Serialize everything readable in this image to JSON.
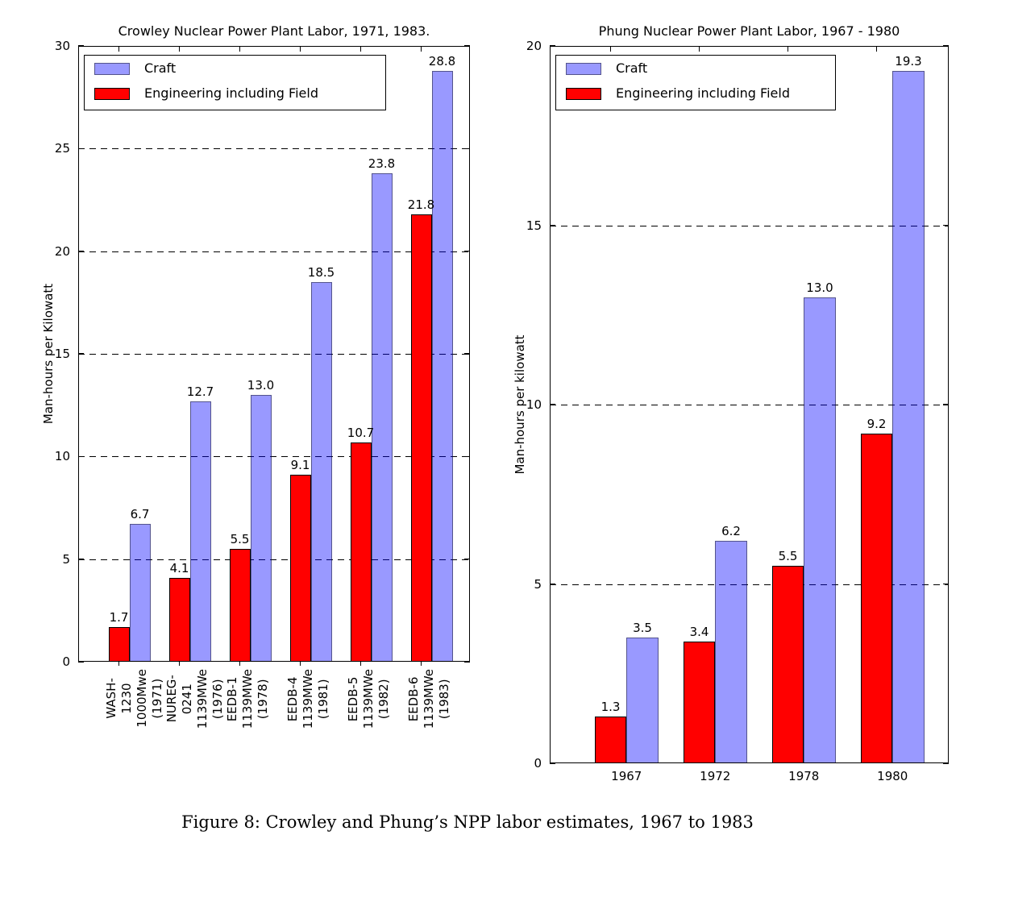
{
  "figure": {
    "caption": "Figure 8: Crowley and Phung’s NPP labor estimates, 1967 to 1983"
  },
  "chart_data": [
    {
      "type": "bar",
      "title": "Crowley Nuclear Power Plant Labor, 1971, 1983.",
      "ylabel": "Man-hours per Kilowatt",
      "xlabel": "",
      "ylim": [
        0,
        30
      ],
      "yticks": [
        0,
        5,
        10,
        15,
        20,
        25,
        30
      ],
      "gridlines": [
        5,
        10,
        15,
        20,
        25
      ],
      "grid_style": "dashed-horizontal",
      "legend_position": "upper-left",
      "categories": [
        [
          "WASH-1230",
          "1000Mwe (1971)"
        ],
        [
          "NUREG-0241",
          "1139MWe (1976)"
        ],
        [
          "EEDB-1",
          "1139MWe (1978)"
        ],
        [
          "EEDB-4",
          "1139MWe (1981)"
        ],
        [
          "EEDB-5",
          "1139MWe (1982)"
        ],
        [
          "EEDB-6",
          "1139MWe (1983)"
        ]
      ],
      "series": [
        {
          "name": "Craft",
          "color": "#0000ff",
          "alpha": 0.4,
          "values": [
            6.7,
            12.7,
            13.0,
            18.5,
            23.8,
            28.8
          ]
        },
        {
          "name": "Engineering including Field",
          "color": "#ff0000",
          "alpha": 1.0,
          "values": [
            1.7,
            4.1,
            5.5,
            9.1,
            10.7,
            21.8
          ]
        }
      ]
    },
    {
      "type": "bar",
      "title": "Phung Nuclear Power Plant Labor, 1967 - 1980",
      "ylabel": "Man-hours per kilowatt",
      "xlabel": "",
      "ylim": [
        0,
        20
      ],
      "yticks": [
        0,
        5,
        10,
        15,
        20
      ],
      "gridlines": [
        5,
        10,
        15
      ],
      "grid_style": "dashed-horizontal",
      "legend_position": "upper-left",
      "categories": [
        [
          "1967"
        ],
        [
          "1972"
        ],
        [
          "1978"
        ],
        [
          "1980"
        ]
      ],
      "series": [
        {
          "name": "Craft",
          "color": "#0000ff",
          "alpha": 0.4,
          "values": [
            3.5,
            6.2,
            13.0,
            19.3
          ]
        },
        {
          "name": "Engineering including Field",
          "color": "#ff0000",
          "alpha": 1.0,
          "values": [
            1.3,
            3.4,
            5.5,
            9.2
          ]
        }
      ]
    }
  ]
}
